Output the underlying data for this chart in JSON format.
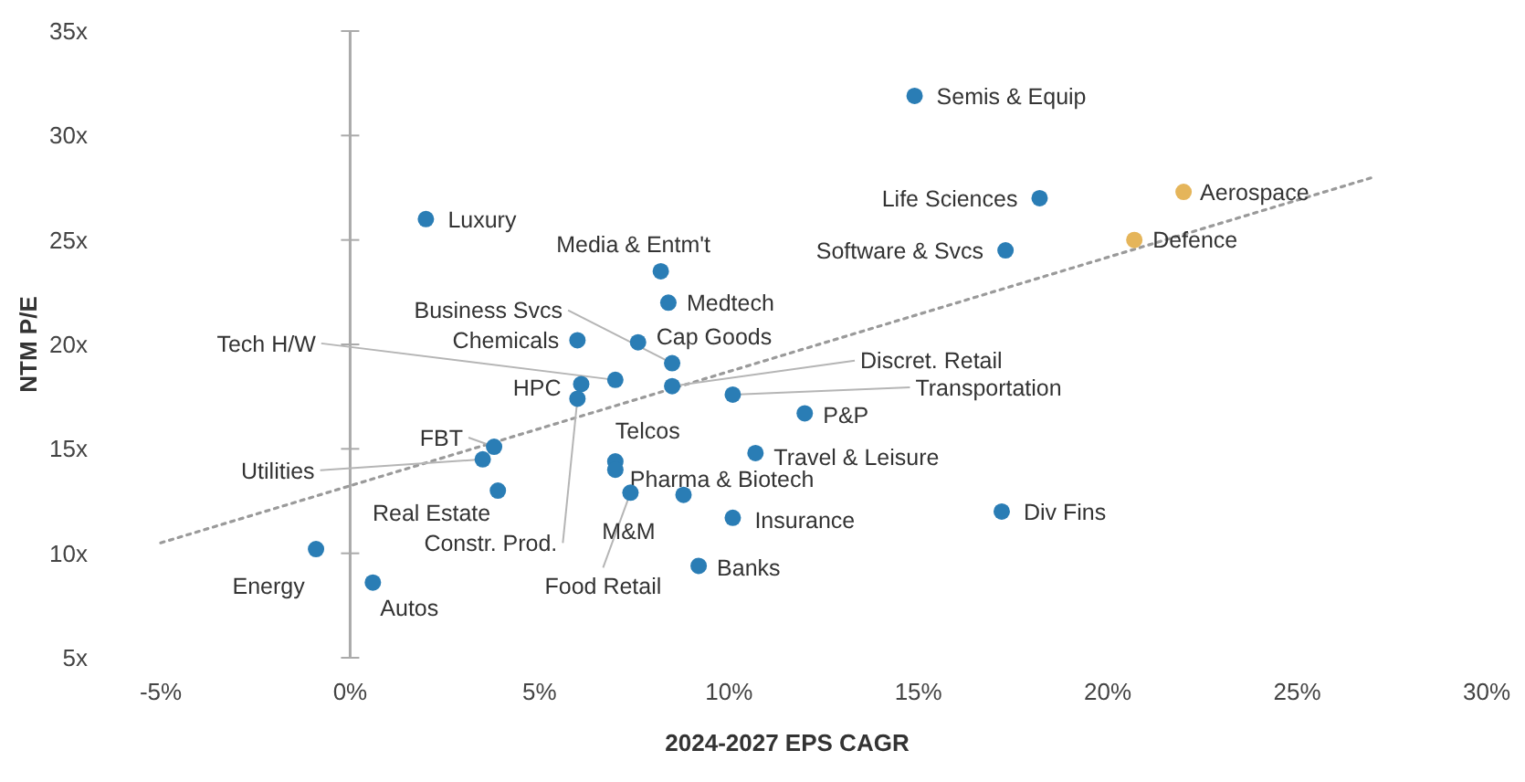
{
  "chart_data": {
    "type": "scatter",
    "xlabel": "2024-2027 EPS CAGR",
    "ylabel": "NTM P/E",
    "xlim": [
      -5,
      30
    ],
    "ylim": [
      5,
      35
    ],
    "xticks": [
      {
        "value": -5,
        "label": "-5%"
      },
      {
        "value": 0,
        "label": "0%"
      },
      {
        "value": 5,
        "label": "5%"
      },
      {
        "value": 10,
        "label": "10%"
      },
      {
        "value": 15,
        "label": "15%"
      },
      {
        "value": 20,
        "label": "20%"
      },
      {
        "value": 25,
        "label": "25%"
      },
      {
        "value": 30,
        "label": "30%"
      }
    ],
    "yticks": [
      {
        "value": 5,
        "label": "5x"
      },
      {
        "value": 10,
        "label": "10x"
      },
      {
        "value": 15,
        "label": "15x"
      },
      {
        "value": 20,
        "label": "20x"
      },
      {
        "value": 25,
        "label": "25x"
      },
      {
        "value": 30,
        "label": "30x"
      },
      {
        "value": 35,
        "label": "35x"
      }
    ],
    "marker": "circle",
    "series": [
      {
        "type": "scatter",
        "x": [
          14.9,
          18.2,
          17.3,
          22.0,
          20.7,
          2.0,
          8.2,
          8.4,
          7.6,
          8.5,
          6.0,
          7.0,
          6.1,
          6.0,
          8.5,
          10.1,
          12.0,
          10.7,
          7.0,
          7.0,
          7.4,
          8.8,
          10.1,
          9.2,
          17.2,
          3.8,
          3.5,
          3.9,
          -0.9,
          0.6
        ],
        "values": [
          31.9,
          27.0,
          24.5,
          27.3,
          25.0,
          26.0,
          23.5,
          22.0,
          20.1,
          19.1,
          20.2,
          18.3,
          18.1,
          17.4,
          18.0,
          17.6,
          16.7,
          14.8,
          14.4,
          14.0,
          12.9,
          12.8,
          11.7,
          9.4,
          12.0,
          15.1,
          14.5,
          13.0,
          10.2,
          8.6
        ],
        "colors": [
          "#2a7db5",
          "#2a7db5",
          "#2a7db5",
          "#e5b55a",
          "#e5b55a",
          "#2a7db5",
          "#2a7db5",
          "#2a7db5",
          "#2a7db5",
          "#2a7db5",
          "#2a7db5",
          "#2a7db5",
          "#2a7db5",
          "#2a7db5",
          "#2a7db5",
          "#2a7db5",
          "#2a7db5",
          "#2a7db5",
          "#2a7db5",
          "#2a7db5",
          "#2a7db5",
          "#2a7db5",
          "#2a7db5",
          "#2a7db5",
          "#2a7db5",
          "#2a7db5",
          "#2a7db5",
          "#2a7db5",
          "#2a7db5",
          "#2a7db5"
        ]
      },
      {
        "type": "line",
        "x": [
          -5,
          27
        ],
        "values": [
          10.5,
          28.0
        ],
        "color": "#9a9a9a",
        "line_style": "dotted",
        "marker": "none"
      }
    ],
    "annotations": [
      {
        "text": "Semis & Equip",
        "x": 14.9,
        "y": 31.9
      },
      {
        "text": "Life Sciences",
        "x": 18.2,
        "y": 27.0
      },
      {
        "text": "Software & Svcs",
        "x": 17.3,
        "y": 24.5
      },
      {
        "text": "Aerospace",
        "x": 22.0,
        "y": 27.3
      },
      {
        "text": "Defence",
        "x": 20.7,
        "y": 25.0
      },
      {
        "text": "Luxury",
        "x": 2.0,
        "y": 26.0
      },
      {
        "text": "Media & Entm't",
        "x": 8.2,
        "y": 23.5
      },
      {
        "text": "Medtech",
        "x": 8.4,
        "y": 22.0
      },
      {
        "text": "Cap Goods",
        "x": 7.6,
        "y": 20.1
      },
      {
        "text": "Business Svcs",
        "x": 8.5,
        "y": 19.1
      },
      {
        "text": "Chemicals",
        "x": 6.0,
        "y": 20.2
      },
      {
        "text": "Tech H/W",
        "x": 7.0,
        "y": 18.3
      },
      {
        "text": "HPC",
        "x": 6.1,
        "y": 18.1
      },
      {
        "text": "Constr. Prod.",
        "x": 6.0,
        "y": 17.4
      },
      {
        "text": "Discret. Retail",
        "x": 8.5,
        "y": 18.0
      },
      {
        "text": "Transportation",
        "x": 10.1,
        "y": 17.6
      },
      {
        "text": "P&P",
        "x": 12.0,
        "y": 16.7
      },
      {
        "text": "Travel & Leisure",
        "x": 10.7,
        "y": 14.8
      },
      {
        "text": "Telcos",
        "x": 7.0,
        "y": 14.4
      },
      {
        "text": "Pharma & Biotech",
        "x": 7.0,
        "y": 14.0
      },
      {
        "text": "Food Retail",
        "x": 7.4,
        "y": 12.9
      },
      {
        "text": "M&M",
        "x": 8.8,
        "y": 12.8
      },
      {
        "text": "Insurance",
        "x": 10.1,
        "y": 11.7
      },
      {
        "text": "Banks",
        "x": 9.2,
        "y": 9.4
      },
      {
        "text": "Div Fins",
        "x": 17.2,
        "y": 12.0
      },
      {
        "text": "FBT",
        "x": 3.8,
        "y": 15.1
      },
      {
        "text": "Utilities",
        "x": 3.5,
        "y": 14.5
      },
      {
        "text": "Real Estate",
        "x": 3.9,
        "y": 13.0
      },
      {
        "text": "Energy",
        "x": -0.9,
        "y": 10.2
      },
      {
        "text": "Autos",
        "x": 0.6,
        "y": 8.6
      }
    ]
  }
}
